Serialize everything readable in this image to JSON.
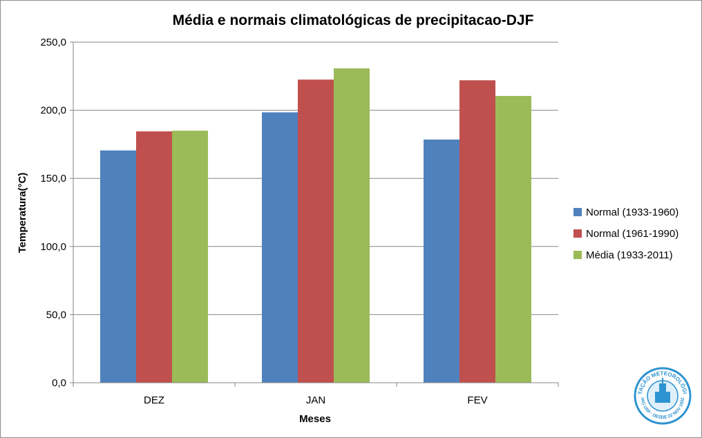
{
  "chart_data": {
    "type": "bar",
    "title": "Média e normais climatológicas de precipitacao-DJF",
    "xlabel": "Meses",
    "ylabel": "Temperatura(°C)",
    "categories": [
      "DEZ",
      "JAN",
      "FEV"
    ],
    "series": [
      {
        "name": "Normal (1933-1960)",
        "color": "#4f81bd",
        "values": [
          170.5,
          198.5,
          178.5
        ]
      },
      {
        "name": "Normal (1961-1990)",
        "color": "#c0504d",
        "values": [
          184.5,
          222.5,
          222.0
        ]
      },
      {
        "name": "Média (1933-2011)",
        "color": "#9bbb59",
        "values": [
          185.0,
          230.8,
          210.5
        ]
      }
    ],
    "ylim": [
      0,
      250
    ],
    "yticks": [
      "0,0",
      "50,0",
      "100,0",
      "150,0",
      "200,0",
      "250,0"
    ],
    "grid": true,
    "legend_position": "right"
  },
  "logo": {
    "text_top": "ESTAÇÃO METEOROLÓGICA",
    "text_bottom": "IAG USP · DESDE 22 NOV 1932"
  }
}
